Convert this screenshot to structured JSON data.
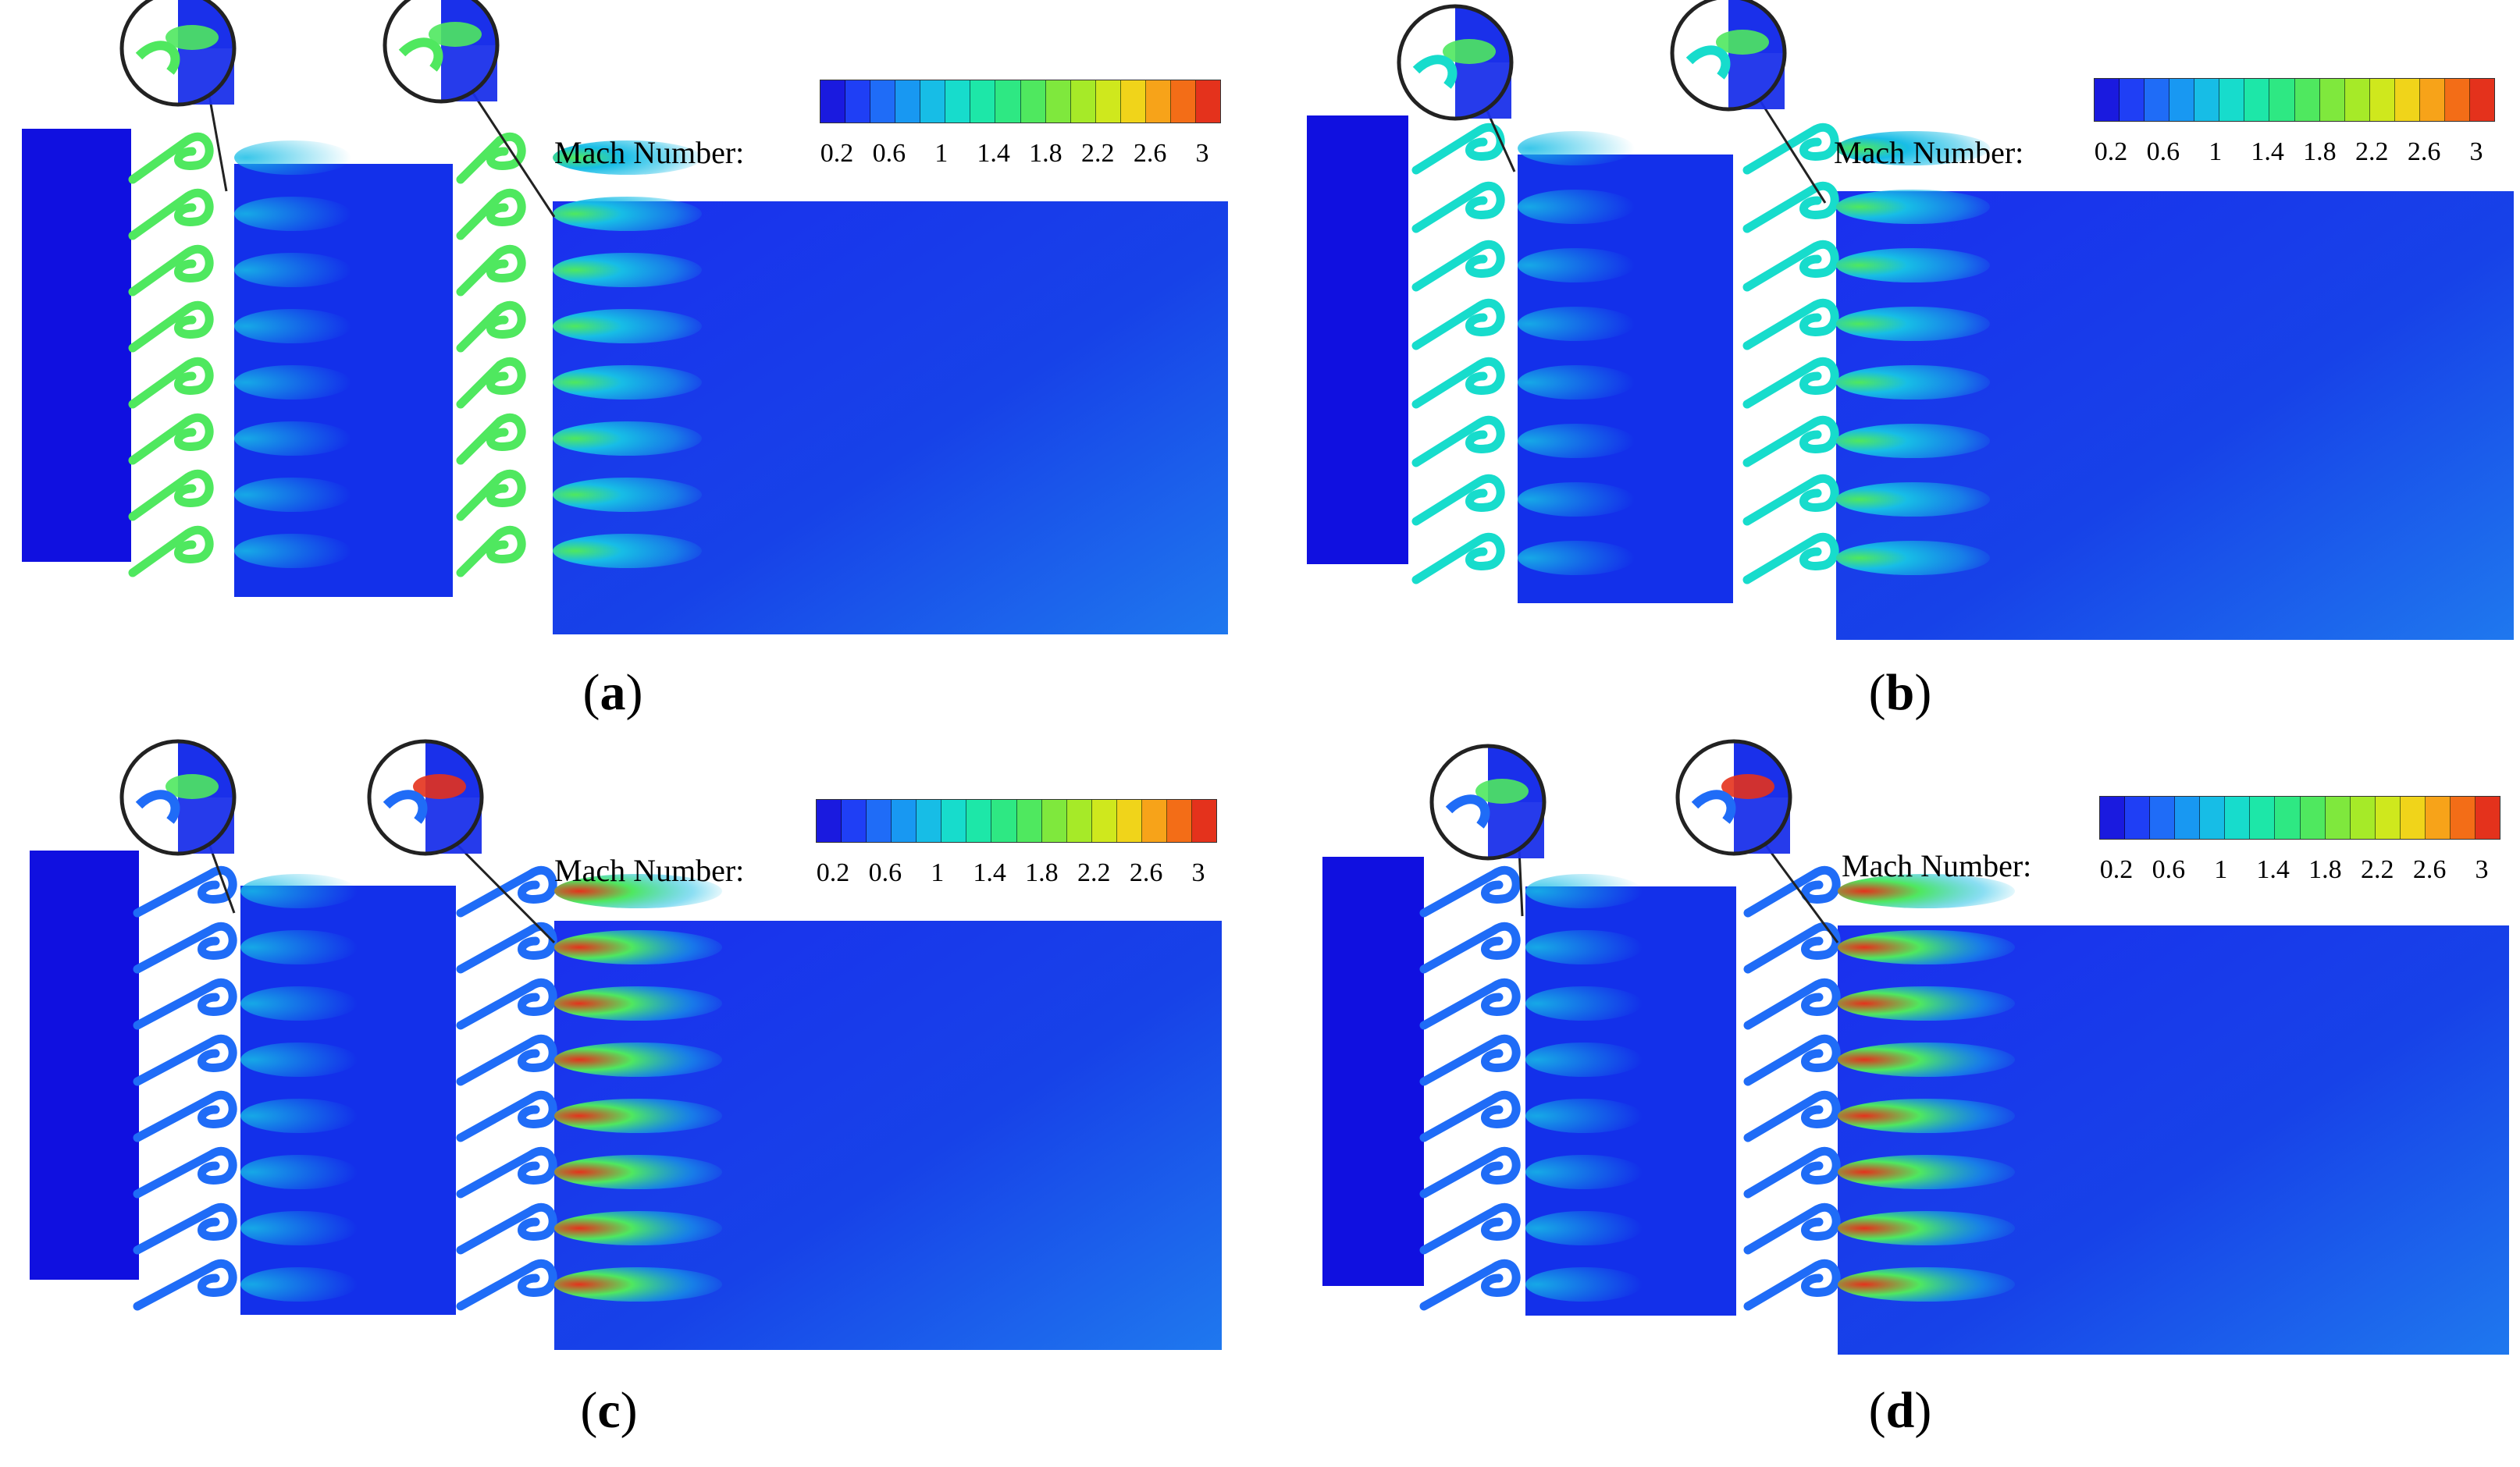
{
  "colorbar": {
    "label": "Mach Number:",
    "ticks": [
      "0.2",
      "0.6",
      "1",
      "1.4",
      "1.8",
      "2.2",
      "2.6",
      "3"
    ],
    "colors": [
      "#1a1adf",
      "#1f3ff5",
      "#1f6cf7",
      "#1898f2",
      "#17bde6",
      "#17dccc",
      "#1de7a8",
      "#2ee883",
      "#4fe85f",
      "#7fe83d",
      "#a6ea28",
      "#cfe81d",
      "#f0d41a",
      "#f7a319",
      "#f36d17",
      "#e4321c"
    ]
  },
  "field_colors": {
    "chamber": "#1010e0",
    "outlet": "#1a4cf2",
    "jet_core": "#e4321c",
    "jet_mid": "#4fe85f",
    "jet_outer": "#17bde6"
  },
  "panels": [
    {
      "id": "a",
      "caption_open": "(",
      "caption_letter": "a",
      "caption_close": ")",
      "nozzle_color": "#4fe85f",
      "jet_peak": 0.35
    },
    {
      "id": "b",
      "caption_open": "(",
      "caption_letter": "b",
      "caption_close": ")",
      "nozzle_color": "#17dccc",
      "jet_peak": 0.45
    },
    {
      "id": "c",
      "caption_open": "(",
      "caption_letter": "c",
      "caption_close": ")",
      "nozzle_color": "#1f6cf7",
      "jet_peak": 0.75
    },
    {
      "id": "d",
      "caption_open": "(",
      "caption_letter": "d",
      "caption_close": ")",
      "nozzle_color": "#1f6cf7",
      "jet_peak": 0.95
    }
  ]
}
